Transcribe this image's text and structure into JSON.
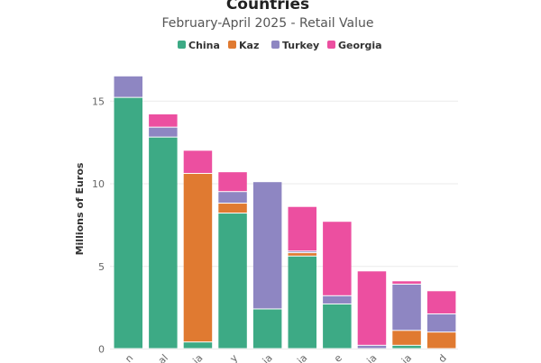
{
  "colors": {
    "China": "#3daa85",
    "Kaz": "#e07a31",
    "Turkey": "#8e86c2",
    "Georgia": "#ec4fa0"
  },
  "chart_data": {
    "type": "bar",
    "stacked": true,
    "title": "Countries",
    "subtitle": "February-April 2025 - Retail Value",
    "ylabel": "Millions of Euros",
    "ylim": [
      0,
      17
    ],
    "yticks": [
      0,
      5,
      10,
      15
    ],
    "categories": [
      "n",
      "al",
      "ia",
      "y",
      "ia",
      "ia",
      "e",
      "ia",
      "ia",
      "d"
    ],
    "legend": [
      "China",
      "Kaz",
      "Turkey",
      "Georgia"
    ],
    "legend_position": "top",
    "series": [
      {
        "name": "China",
        "values": [
          15.2,
          12.8,
          0.4,
          8.2,
          2.4,
          5.6,
          2.7,
          0.0,
          0.2,
          0.0
        ]
      },
      {
        "name": "Kaz",
        "values": [
          0.0,
          0.0,
          10.2,
          0.6,
          0.0,
          0.2,
          0.0,
          0.0,
          0.9,
          1.0
        ]
      },
      {
        "name": "Turkey",
        "values": [
          1.3,
          0.6,
          0.0,
          0.7,
          7.7,
          0.1,
          0.5,
          0.2,
          2.8,
          1.1
        ]
      },
      {
        "name": "Georgia",
        "values": [
          0.0,
          0.8,
          1.4,
          1.2,
          0.0,
          2.7,
          4.5,
          4.5,
          0.2,
          1.4
        ]
      }
    ],
    "grid": true
  }
}
